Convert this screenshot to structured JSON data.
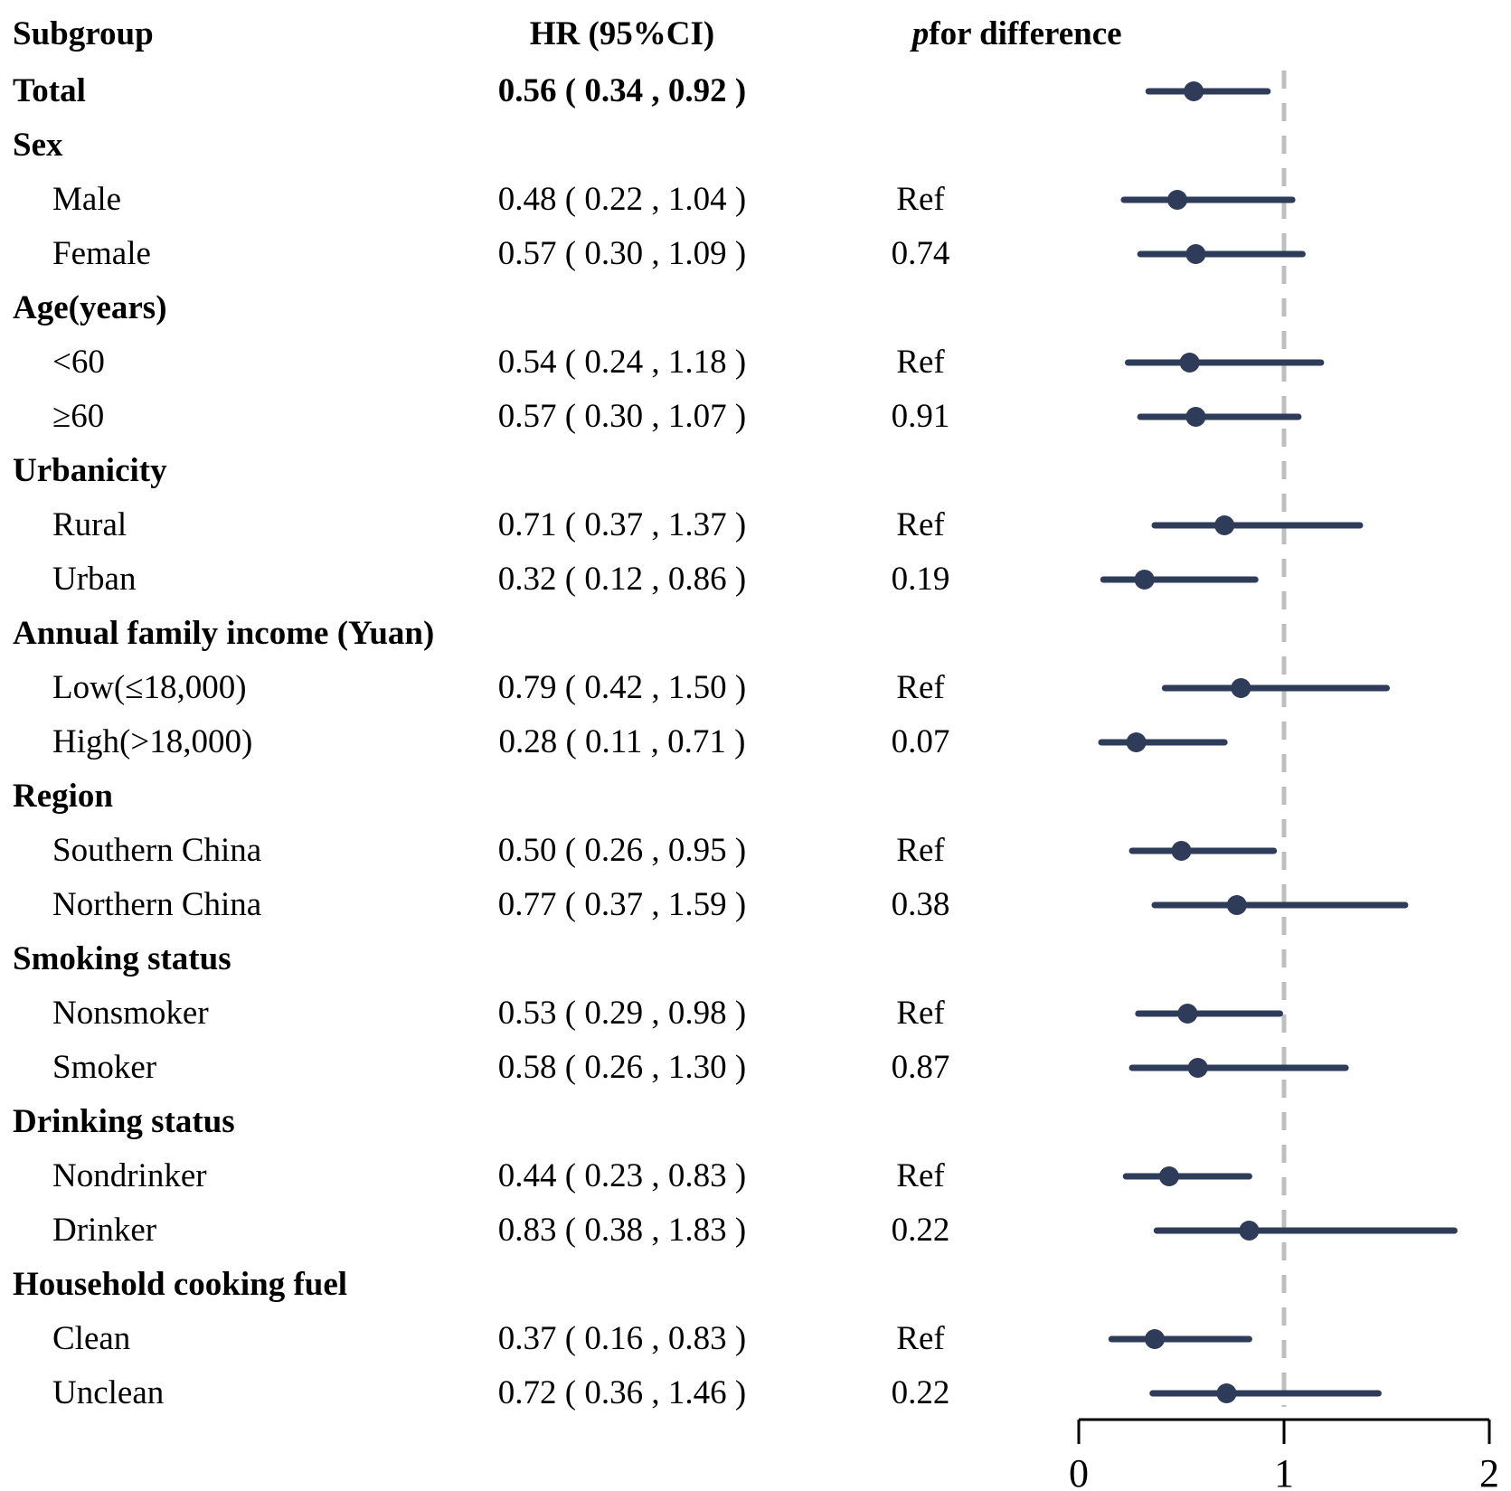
{
  "header": {
    "subgroup": "Subgroup",
    "hr": "HR (95%CI)",
    "p_italic": "p",
    "p_rest": " for difference"
  },
  "colors": {
    "estimate": "#2e3b59",
    "ref_line": "#bfbfbf",
    "axis": "#000000"
  },
  "chart_data": {
    "type": "forest",
    "x_axis": {
      "range": [
        0,
        2
      ],
      "ticks": [
        0,
        1,
        2
      ],
      "tick_labels": [
        "0",
        "1",
        "2"
      ]
    },
    "reference_line": 1,
    "rows": [
      {
        "label": "Total",
        "bold": true,
        "indent": false,
        "hr": 0.56,
        "lo": 0.34,
        "hi": 0.92,
        "hr_text": "0.56 ( 0.34 , 0.92 )",
        "hr_bold": true,
        "p": ""
      },
      {
        "label": "Sex",
        "bold": true,
        "indent": false
      },
      {
        "label": "Male",
        "bold": false,
        "indent": true,
        "hr": 0.48,
        "lo": 0.22,
        "hi": 1.04,
        "hr_text": "0.48 ( 0.22 , 1.04 )",
        "p": "Ref"
      },
      {
        "label": "Female",
        "bold": false,
        "indent": true,
        "hr": 0.57,
        "lo": 0.3,
        "hi": 1.09,
        "hr_text": "0.57 ( 0.30 , 1.09 )",
        "p": "0.74"
      },
      {
        "label": "Age(years)",
        "bold": true,
        "indent": false
      },
      {
        "label": "<60",
        "bold": false,
        "indent": true,
        "hr": 0.54,
        "lo": 0.24,
        "hi": 1.18,
        "hr_text": "0.54 ( 0.24 , 1.18 )",
        "p": "Ref"
      },
      {
        "label": "≥60",
        "bold": false,
        "indent": true,
        "hr": 0.57,
        "lo": 0.3,
        "hi": 1.07,
        "hr_text": "0.57 ( 0.30 , 1.07 )",
        "p": "0.91"
      },
      {
        "label": "Urbanicity",
        "bold": true,
        "indent": false
      },
      {
        "label": "Rural",
        "bold": false,
        "indent": true,
        "hr": 0.71,
        "lo": 0.37,
        "hi": 1.37,
        "hr_text": "0.71 ( 0.37 , 1.37 )",
        "p": "Ref"
      },
      {
        "label": "Urban",
        "bold": false,
        "indent": true,
        "hr": 0.32,
        "lo": 0.12,
        "hi": 0.86,
        "hr_text": "0.32 ( 0.12 , 0.86 )",
        "p": "0.19"
      },
      {
        "label": "Annual family income (Yuan)",
        "bold": true,
        "indent": false
      },
      {
        "label": "Low(≤18,000)",
        "bold": false,
        "indent": true,
        "hr": 0.79,
        "lo": 0.42,
        "hi": 1.5,
        "hr_text": "0.79 ( 0.42 , 1.50 )",
        "p": "Ref"
      },
      {
        "label": "High(>18,000)",
        "bold": false,
        "indent": true,
        "hr": 0.28,
        "lo": 0.11,
        "hi": 0.71,
        "hr_text": "0.28 ( 0.11 , 0.71 )",
        "p": "0.07"
      },
      {
        "label": "Region",
        "bold": true,
        "indent": false
      },
      {
        "label": "Southern China",
        "bold": false,
        "indent": true,
        "hr": 0.5,
        "lo": 0.26,
        "hi": 0.95,
        "hr_text": "0.50 ( 0.26 , 0.95 )",
        "p": "Ref"
      },
      {
        "label": "Northern China",
        "bold": false,
        "indent": true,
        "hr": 0.77,
        "lo": 0.37,
        "hi": 1.59,
        "hr_text": "0.77 ( 0.37 , 1.59 )",
        "p": "0.38"
      },
      {
        "label": "Smoking status",
        "bold": true,
        "indent": false
      },
      {
        "label": "Nonsmoker",
        "bold": false,
        "indent": true,
        "hr": 0.53,
        "lo": 0.29,
        "hi": 0.98,
        "hr_text": "0.53 ( 0.29 , 0.98 )",
        "p": "Ref"
      },
      {
        "label": "Smoker",
        "bold": false,
        "indent": true,
        "hr": 0.58,
        "lo": 0.26,
        "hi": 1.3,
        "hr_text": "0.58 ( 0.26 , 1.30 )",
        "p": "0.87"
      },
      {
        "label": "Drinking status",
        "bold": true,
        "indent": false
      },
      {
        "label": "Nondrinker",
        "bold": false,
        "indent": true,
        "hr": 0.44,
        "lo": 0.23,
        "hi": 0.83,
        "hr_text": "0.44 ( 0.23 , 0.83 )",
        "p": "Ref"
      },
      {
        "label": "Drinker",
        "bold": false,
        "indent": true,
        "hr": 0.83,
        "lo": 0.38,
        "hi": 1.83,
        "hr_text": "0.83 ( 0.38 , 1.83 )",
        "p": "0.22"
      },
      {
        "label": "Household cooking fuel",
        "bold": true,
        "indent": false
      },
      {
        "label": "Clean",
        "bold": false,
        "indent": true,
        "hr": 0.37,
        "lo": 0.16,
        "hi": 0.83,
        "hr_text": "0.37 ( 0.16 , 0.83 )",
        "p": "Ref"
      },
      {
        "label": "Unclean",
        "bold": false,
        "indent": true,
        "hr": 0.72,
        "lo": 0.36,
        "hi": 1.46,
        "hr_text": "0.72 ( 0.36 , 1.46 )",
        "p": "0.22"
      }
    ]
  }
}
